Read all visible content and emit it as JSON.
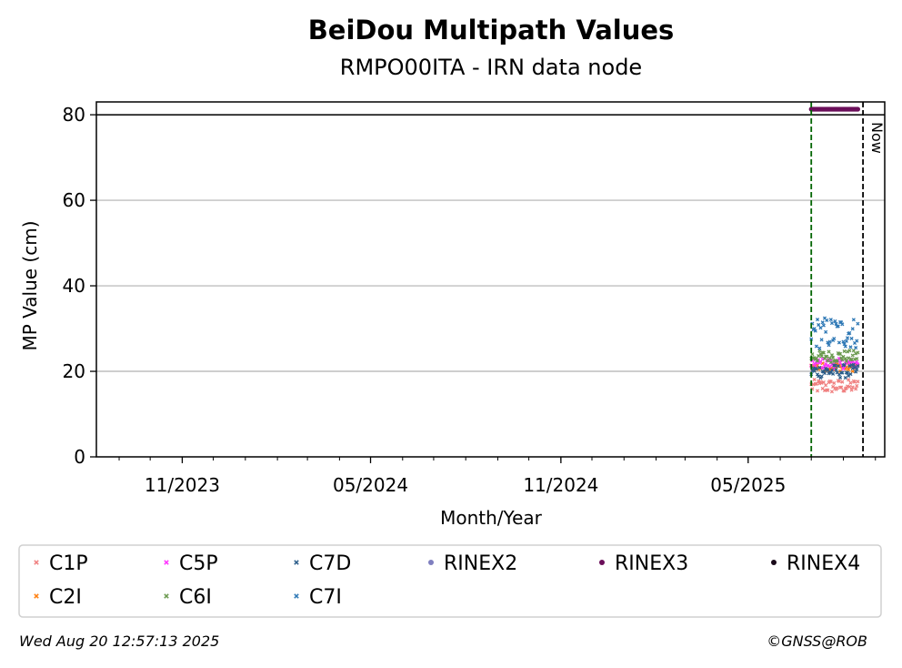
{
  "chart_data": {
    "type": "scatter",
    "title": "BeiDou Multipath Values",
    "subtitle": "RMPO00ITA - IRN data node",
    "xlabel": "Month/Year",
    "ylabel": "MP Value (cm)",
    "xlim": [
      "2023-08-10",
      "2025-09-10"
    ],
    "ylim": [
      0,
      83
    ],
    "y_ticks": [
      0,
      20,
      40,
      60,
      80
    ],
    "x_ticks": [
      {
        "date": "2023-11-01",
        "label": "11/2023"
      },
      {
        "date": "2024-05-01",
        "label": "05/2024"
      },
      {
        "date": "2024-11-01",
        "label": "11/2024"
      },
      {
        "date": "2025-05-01",
        "label": "05/2025"
      }
    ],
    "grid": "horizontal",
    "reference_line_y": 80,
    "start_marker_date": "2025-07-01",
    "now_date": "2025-08-20",
    "now_label": "Now",
    "legend_position": "bottom",
    "series": [
      {
        "name": "C1P",
        "color": "#f08080",
        "marker": "x",
        "start": "2025-07-01",
        "end": "2025-08-15",
        "center": 16.5,
        "spread": 1.6
      },
      {
        "name": "C2I",
        "color": "#ff7f0e",
        "marker": "x",
        "start": "2025-07-01",
        "end": "2025-08-15",
        "center": 21.0,
        "spread": 1.0
      },
      {
        "name": "C5P",
        "color": "#ff33ff",
        "marker": "x",
        "start": "2025-07-01",
        "end": "2025-08-15",
        "center": 21.8,
        "spread": 1.2
      },
      {
        "name": "C6I",
        "color": "#6a994e",
        "marker": "x",
        "start": "2025-07-01",
        "end": "2025-08-15",
        "center": 23.5,
        "spread": 1.4
      },
      {
        "name": "C7D",
        "color": "#2b5d8a",
        "marker": "x",
        "start": "2025-07-01",
        "end": "2025-08-15",
        "center": 20.0,
        "spread": 1.6
      },
      {
        "name": "C7I",
        "color": "#2e78b5",
        "marker": "x",
        "start": "2025-07-01",
        "end": "2025-08-15",
        "center": 29.0,
        "spread": 3.8
      },
      {
        "name": "RINEX2",
        "color": "#7f7fbf",
        "marker": "dot",
        "start": "",
        "end": "",
        "center": null,
        "spread": 0
      },
      {
        "name": "RINEX3",
        "color": "#6b0f5a",
        "marker": "dot",
        "start": "2025-07-01",
        "end": "2025-08-15",
        "center": 81.3,
        "spread": 0
      },
      {
        "name": "RINEX4",
        "color": "#1a0a1a",
        "marker": "dot",
        "start": "",
        "end": "",
        "center": null,
        "spread": 0
      }
    ]
  },
  "footer": {
    "timestamp": "Wed Aug 20 12:57:13 2025",
    "credit": "©GNSS@ROB"
  }
}
